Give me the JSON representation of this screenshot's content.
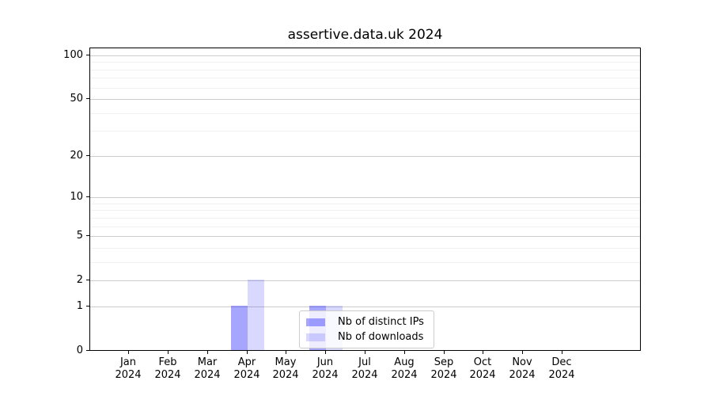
{
  "chart_data": {
    "type": "bar",
    "title": "assertive.data.uk 2024",
    "categories": [
      {
        "month": "Jan",
        "year": "2024"
      },
      {
        "month": "Feb",
        "year": "2024"
      },
      {
        "month": "Mar",
        "year": "2024"
      },
      {
        "month": "Apr",
        "year": "2024"
      },
      {
        "month": "May",
        "year": "2024"
      },
      {
        "month": "Jun",
        "year": "2024"
      },
      {
        "month": "Jul",
        "year": "2024"
      },
      {
        "month": "Aug",
        "year": "2024"
      },
      {
        "month": "Sep",
        "year": "2024"
      },
      {
        "month": "Oct",
        "year": "2024"
      },
      {
        "month": "Nov",
        "year": "2024"
      },
      {
        "month": "Dec",
        "year": "2024"
      }
    ],
    "series": [
      {
        "name": "Nb of distinct IPs",
        "color": "rgba(0,0,255,0.35)",
        "values": [
          0,
          0,
          0,
          1,
          0,
          1,
          0,
          0,
          0,
          0,
          0,
          0
        ]
      },
      {
        "name": "Nb of downloads",
        "color": "rgba(0,0,255,0.15)",
        "values": [
          0,
          0,
          0,
          2,
          0,
          1,
          0,
          0,
          0,
          0,
          0,
          0
        ]
      }
    ],
    "y_axis": {
      "scale": "log1p",
      "ticks": [
        0,
        1,
        2,
        5,
        10,
        20,
        50,
        100
      ],
      "minor_ticks": [
        3,
        4,
        6,
        7,
        8,
        9,
        30,
        40,
        60,
        70,
        80,
        90
      ],
      "range_top_value": 113
    },
    "x_axis": {
      "unit": "month",
      "year": "2024"
    },
    "legend": {
      "position": "lower center"
    },
    "grid": {
      "major_color": "#cccccc",
      "minor_color": "#f1f1f1"
    }
  }
}
